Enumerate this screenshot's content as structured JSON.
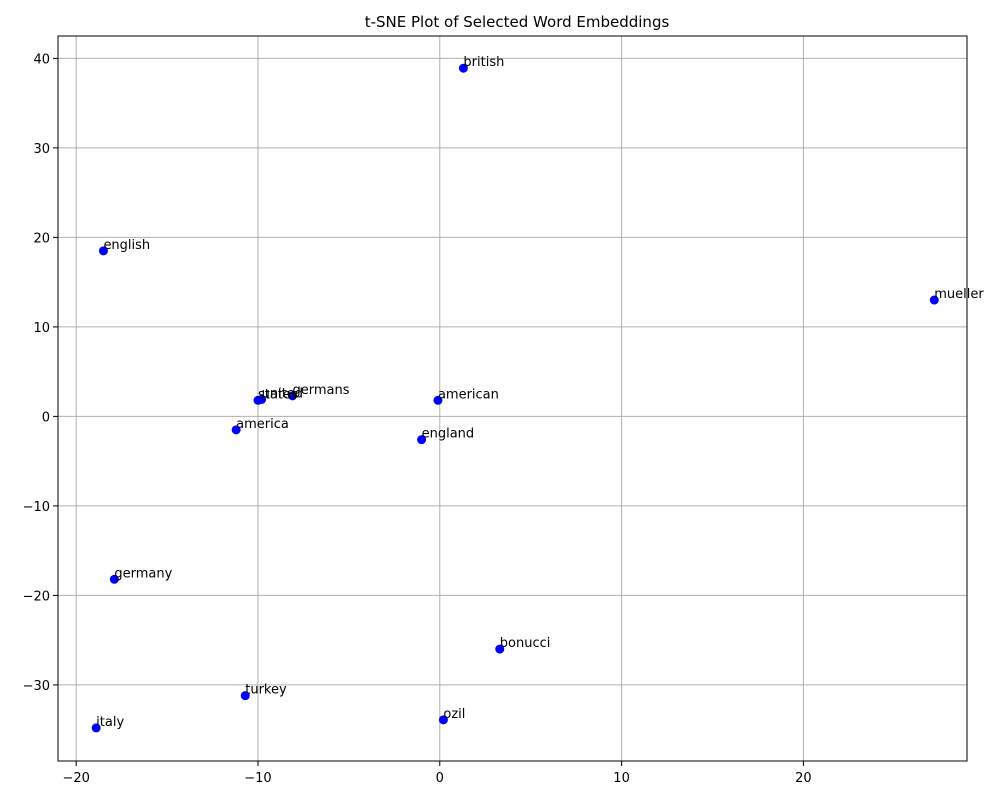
{
  "chart_data": {
    "type": "scatter",
    "title": "t-SNE Plot of Selected Word Embeddings",
    "xlabel": "",
    "ylabel": "",
    "xlim": [
      -21,
      29
    ],
    "ylim": [
      -38.5,
      42.5
    ],
    "xticks": [
      -20,
      -10,
      0,
      10,
      20
    ],
    "yticks": [
      -30,
      -20,
      -10,
      0,
      10,
      20,
      30,
      40
    ],
    "grid": true,
    "marker_color": "#0000ff",
    "points": [
      {
        "label": "british",
        "x": 1.3,
        "y": 38.9
      },
      {
        "label": "english",
        "x": -18.5,
        "y": 18.5
      },
      {
        "label": "mueller",
        "x": 27.2,
        "y": 13.0
      },
      {
        "label": "germans",
        "x": -8.1,
        "y": 2.3
      },
      {
        "label": "united",
        "x": -9.8,
        "y": 1.9
      },
      {
        "label": "states",
        "x": -10.0,
        "y": 1.8
      },
      {
        "label": "american",
        "x": -0.1,
        "y": 1.8
      },
      {
        "label": "america",
        "x": -11.2,
        "y": -1.5
      },
      {
        "label": "england",
        "x": -1.0,
        "y": -2.6
      },
      {
        "label": "germany",
        "x": -17.9,
        "y": -18.2
      },
      {
        "label": "bonucci",
        "x": 3.3,
        "y": -26.0
      },
      {
        "label": "turkey",
        "x": -10.7,
        "y": -31.2
      },
      {
        "label": "ozil",
        "x": 0.2,
        "y": -33.9
      },
      {
        "label": "italy",
        "x": -18.9,
        "y": -34.8
      }
    ]
  }
}
